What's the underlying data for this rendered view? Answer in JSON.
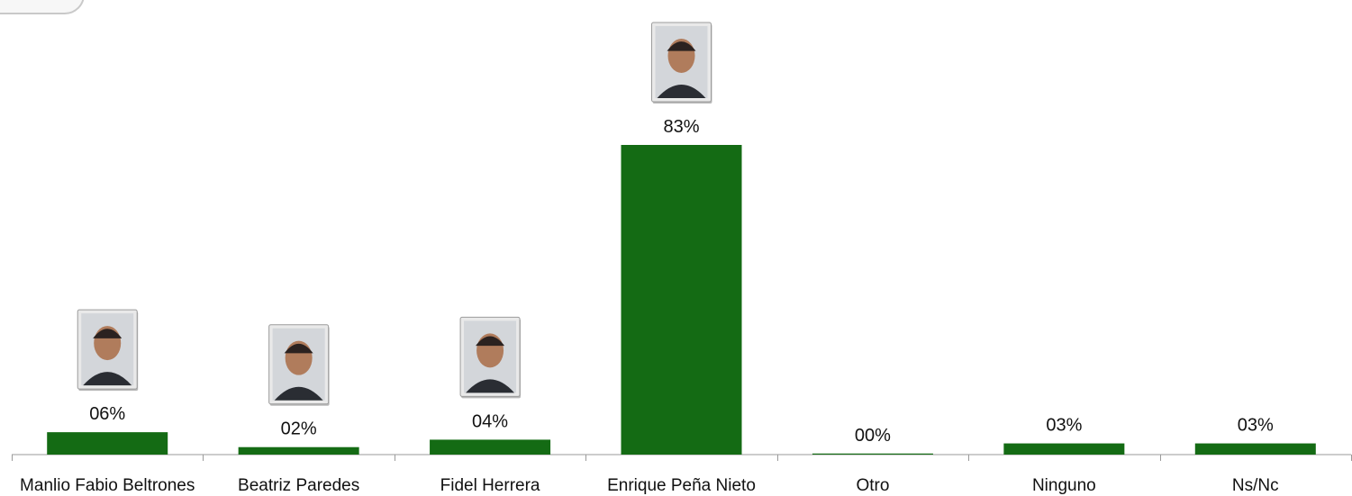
{
  "chart_data": {
    "type": "bar",
    "categories": [
      "Manlio Fabio Beltrones",
      "Beatriz Paredes",
      "Fidel Herrera",
      "Enrique Peña Nieto",
      "Otro",
      "Ninguno",
      "Ns/Nc"
    ],
    "values": [
      6,
      2,
      4,
      83,
      0,
      3,
      3
    ],
    "data_labels": [
      "06%",
      "02%",
      "04%",
      "83%",
      "00%",
      "03%",
      "03%"
    ],
    "portraits": [
      "portrait-photo",
      "portrait-photo",
      "portrait-photo",
      "portrait-photo",
      null,
      null,
      null
    ],
    "title": "",
    "xlabel": "",
    "ylabel": "",
    "ylim": [
      0,
      100
    ],
    "grid": false,
    "bar_color": "#146B14"
  }
}
